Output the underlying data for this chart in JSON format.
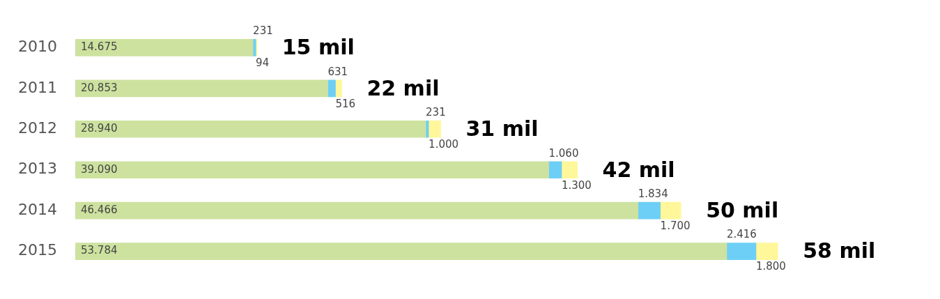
{
  "chart_data": {
    "type": "bar",
    "orientation": "horizontal",
    "stacked": true,
    "categories": [
      "2010",
      "2011",
      "2012",
      "2013",
      "2014",
      "2015"
    ],
    "series": [
      {
        "color": "#cde29f",
        "values": [
          14675,
          20853,
          28940,
          39090,
          46466,
          53784
        ],
        "value_labels": [
          "14.675",
          "20.853",
          "28.940",
          "39.090",
          "46.466",
          "53.784"
        ]
      },
      {
        "color": "#6dcff6",
        "values": [
          231,
          631,
          231,
          1060,
          1834,
          2416
        ],
        "value_labels": [
          "231",
          "631",
          "231",
          "1.060",
          "1.834",
          "2.416"
        ]
      },
      {
        "color": "#fff799",
        "values": [
          94,
          516,
          1000,
          1300,
          1700,
          1800
        ],
        "value_labels": [
          "94",
          "516",
          "1.000",
          "1.300",
          "1.700",
          "1.800"
        ]
      }
    ],
    "annotations": [
      {
        "text": "15 mil",
        "x": 15000,
        "y": "2010"
      },
      {
        "text": "22 mil",
        "x": 22000,
        "y": "2011"
      },
      {
        "text": "31 mil",
        "x": 30171,
        "y": "2012"
      },
      {
        "text": "42 mil",
        "x": 41450,
        "y": "2013"
      },
      {
        "text": "50 mil",
        "x": 50000,
        "y": "2014"
      },
      {
        "text": "58 mil",
        "x": 58000,
        "y": "2015"
      }
    ]
  }
}
